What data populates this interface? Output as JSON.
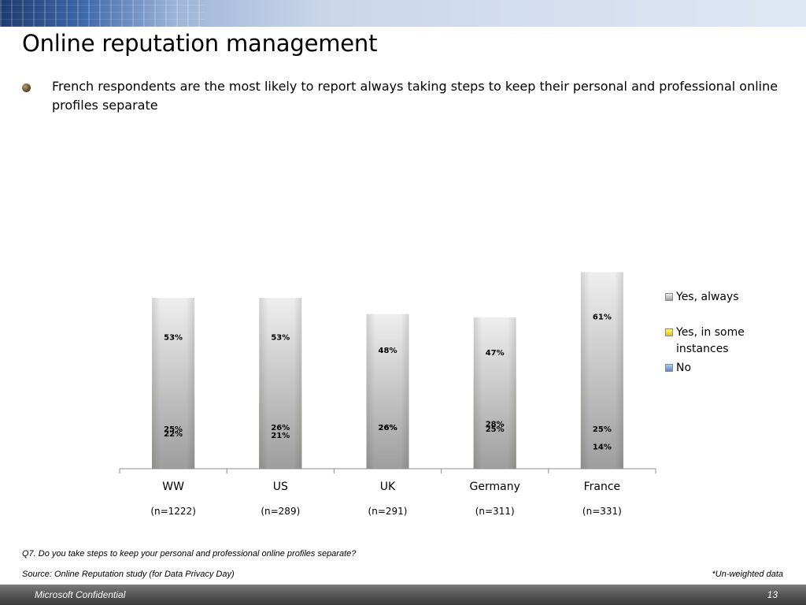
{
  "slide": {
    "title": "Online reputation management",
    "bullet": "French respondents are the most likely to report always taking steps to keep their personal and professional online profiles separate",
    "question_note": "Q7. Do you take steps to keep your personal and professional online profiles separate?",
    "source_note": "Source: Online Reputation study (for Data Privacy Day)",
    "weighting_note": "*Un-weighted data",
    "footer_label": "Microsoft Confidential",
    "page_number": "13"
  },
  "chart_data": {
    "type": "bar",
    "stacked": true,
    "percent_stacked": true,
    "categories": [
      "WW",
      "US",
      "UK",
      "Germany",
      "France"
    ],
    "sample_sizes": [
      "(n=1222)",
      "(n=289)",
      "(n=291)",
      "(n=311)",
      "(n=331)"
    ],
    "series": [
      {
        "name": "No",
        "values": [
          22,
          21,
          26,
          28,
          14
        ],
        "color": "#8fb8ee"
      },
      {
        "name": "Yes, in some instances",
        "values": [
          25,
          26,
          26,
          25,
          25
        ],
        "color": "#ffff44"
      },
      {
        "name": "Yes, always",
        "values": [
          53,
          53,
          48,
          47,
          61
        ],
        "color": "#dcdcdc"
      }
    ],
    "legend_order": [
      "Yes, always",
      "Yes, in some instances",
      "No"
    ],
    "value_suffix": "%",
    "ylim": [
      0,
      100
    ],
    "grid": false,
    "legend_position": "right"
  }
}
